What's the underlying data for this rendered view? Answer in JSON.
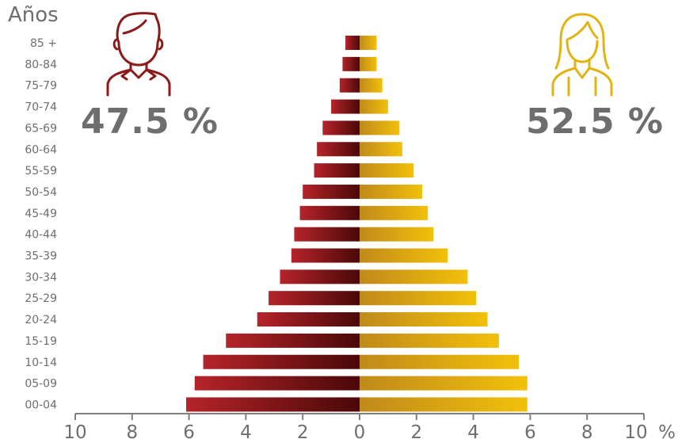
{
  "chart_data": {
    "type": "bar",
    "title": "",
    "ylabel": "Años",
    "x_unit_label": "%",
    "xlim": [
      -10,
      10
    ],
    "x_ticks": [
      -10,
      -8,
      -6,
      -4,
      -2,
      0,
      2,
      4,
      6,
      8,
      10
    ],
    "x_tick_labels": [
      "10",
      "8",
      "6",
      "4",
      "2",
      "0",
      "2",
      "4",
      "6",
      "8",
      "10"
    ],
    "categories": [
      "85 +",
      "80-84",
      "75-79",
      "70-74",
      "65-69",
      "60-64",
      "55-59",
      "50-54",
      "45-49",
      "40-44",
      "35-39",
      "30-34",
      "25-29",
      "20-24",
      "15-19",
      "10-14",
      "05-09",
      "00-04"
    ],
    "series": [
      {
        "group": "male",
        "values": [
          0.5,
          0.6,
          0.7,
          1.0,
          1.3,
          1.5,
          1.6,
          2.0,
          2.1,
          2.3,
          2.4,
          2.8,
          3.2,
          3.6,
          4.7,
          5.5,
          5.8,
          6.1
        ]
      },
      {
        "group": "female",
        "values": [
          0.6,
          0.6,
          0.8,
          1.0,
          1.4,
          1.5,
          1.9,
          2.2,
          2.4,
          2.6,
          3.1,
          3.8,
          4.1,
          4.5,
          4.9,
          5.6,
          5.9,
          5.9
        ]
      }
    ],
    "totals": {
      "male": "47.5 %",
      "female": "52.5 %"
    },
    "colors": {
      "male_light": "#b5242a",
      "male_dark": "#4a0808",
      "female_dark": "#c08a1a",
      "female_light": "#f2c00a",
      "axis": "#7f7f7f",
      "text": "#6e6e6e"
    },
    "icons": [
      "male-person-icon",
      "female-person-icon"
    ],
    "legend": "none",
    "grid": false
  }
}
